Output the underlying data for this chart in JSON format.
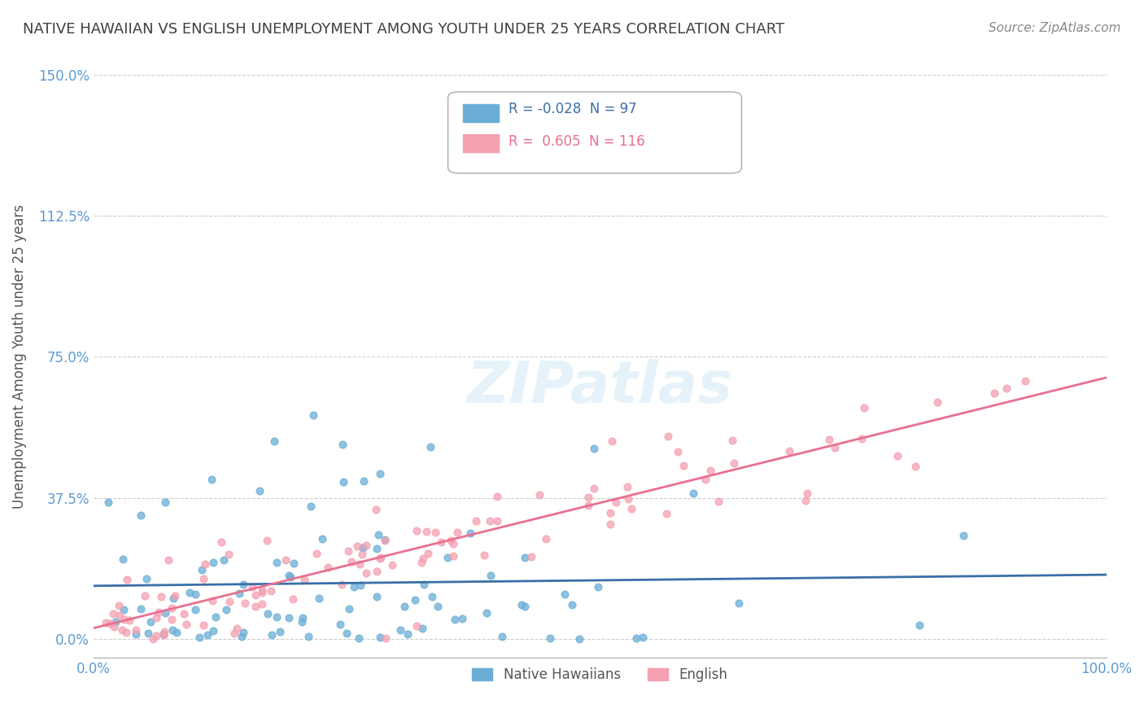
{
  "title": "NATIVE HAWAIIAN VS ENGLISH UNEMPLOYMENT AMONG YOUTH UNDER 25 YEARS CORRELATION CHART",
  "source": "Source: ZipAtlas.com",
  "xlabel": "",
  "ylabel": "Unemployment Among Youth under 25 years",
  "xlim": [
    0.0,
    1.0
  ],
  "ylim": [
    -0.05,
    1.55
  ],
  "yticks": [
    0.0,
    0.375,
    0.75,
    1.125,
    1.5
  ],
  "ytick_labels": [
    "0.0%",
    "37.5%",
    "75.0%",
    "112.5%",
    "150.0%"
  ],
  "xticks": [
    0.0,
    1.0
  ],
  "xtick_labels": [
    "0.0%",
    "100.0%"
  ],
  "legend_R1": "-0.028",
  "legend_N1": "97",
  "legend_R2": "0.605",
  "legend_N2": "116",
  "color_blue": "#6aaed6",
  "color_pink": "#f4a0b0",
  "color_blue_dark": "#3a6fa8",
  "color_pink_dark": "#e87090",
  "watermark": "ZIPatlas",
  "background_color": "#ffffff",
  "grid_color": "#cccccc",
  "axis_color": "#5b9bd5",
  "title_color": "#404040",
  "seed": 42,
  "N_blue": 97,
  "N_pink": 116,
  "R_blue": -0.028,
  "R_pink": 0.605
}
